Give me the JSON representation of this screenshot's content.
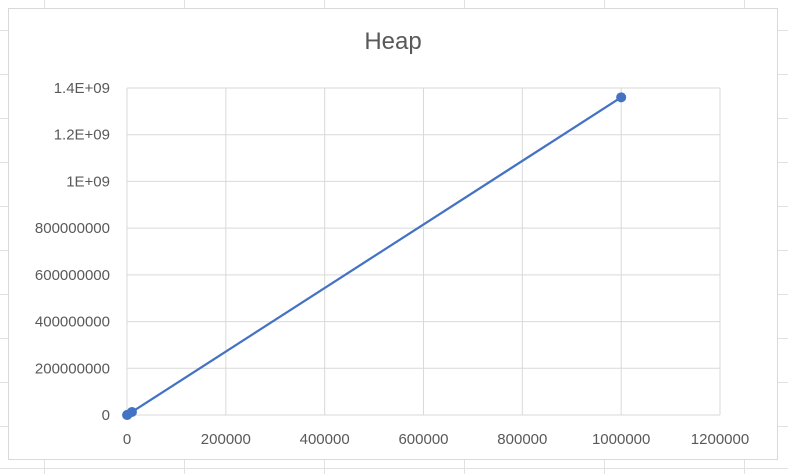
{
  "chart_data": {
    "type": "scatter",
    "title": "Heap",
    "xlabel": "",
    "ylabel": "",
    "xlim": [
      0,
      1200000
    ],
    "ylim": [
      0,
      1400000000
    ],
    "x_ticks": [
      0,
      200000,
      400000,
      600000,
      800000,
      1000000,
      1200000
    ],
    "x_tick_labels": [
      "0",
      "200000",
      "400000",
      "600000",
      "800000",
      "1000000",
      "1200000"
    ],
    "y_ticks": [
      0,
      200000000,
      400000000,
      600000000,
      800000000,
      1000000000,
      1200000000,
      1400000000
    ],
    "y_tick_labels": [
      "0",
      "200000000",
      "400000000",
      "600000000",
      "800000000",
      "1E+09",
      "1.2E+09",
      "1.4E+09"
    ],
    "grid": true,
    "line_connected": true,
    "series": [
      {
        "color": "#4472c4",
        "x": [
          100,
          1000,
          10000,
          1000000
        ],
        "y": [
          90000,
          1100000,
          13000000,
          1360000000
        ]
      }
    ]
  }
}
